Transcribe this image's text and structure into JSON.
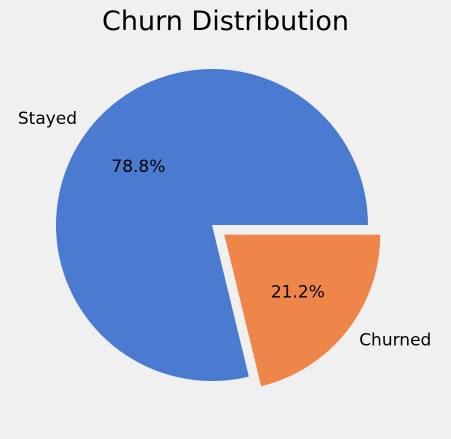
{
  "chart_data": {
    "type": "pie",
    "title": "Churn Distribution",
    "slices": [
      {
        "label": "Stayed",
        "value": 78.8,
        "pct_label": "78.8%",
        "color": "#4a7bd1",
        "explode": 0
      },
      {
        "label": "Churned",
        "value": 21.2,
        "pct_label": "21.2%",
        "color": "#ee864a",
        "explode": 0.1
      }
    ],
    "start_angle_deg": 0,
    "direction": "counterclockwise",
    "legend": "none"
  },
  "background_color": "#f0f0f0"
}
